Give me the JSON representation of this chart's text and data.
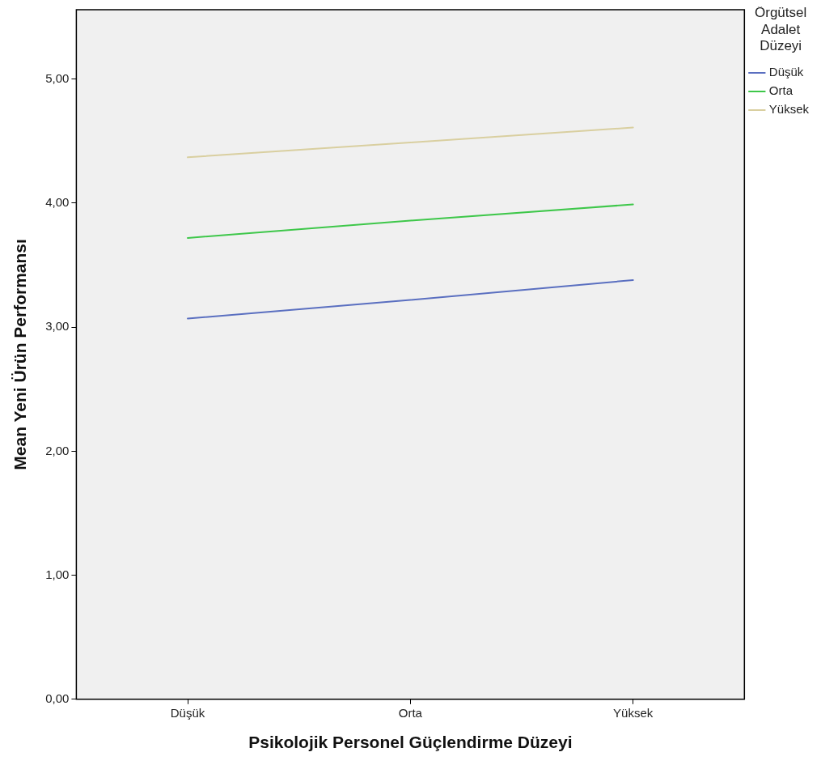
{
  "chart_data": {
    "type": "line",
    "xlabel": "Psikolojik Personel Güçlendirme Düzeyi",
    "ylabel": "Mean Yeni Ürün Performansı",
    "legend_title": "Örgütsel Adalet Düzeyi",
    "categories": [
      "Düşük",
      "Orta",
      "Yüksek"
    ],
    "series": [
      {
        "name": "Düşük",
        "color": "#5a6fc0",
        "values": [
          3.07,
          3.22,
          3.38
        ]
      },
      {
        "name": "Orta",
        "color": "#3ec74a",
        "values": [
          3.72,
          3.86,
          3.99
        ]
      },
      {
        "name": "Yüksek",
        "color": "#d9cfa0",
        "values": [
          4.37,
          4.49,
          4.61
        ]
      }
    ],
    "ylim": [
      0,
      5.56
    ],
    "yticks": [
      {
        "value": 0,
        "label": "0,00"
      },
      {
        "value": 1,
        "label": "1,00"
      },
      {
        "value": 2,
        "label": "2,00"
      },
      {
        "value": 3,
        "label": "3,00"
      },
      {
        "value": 4,
        "label": "4,00"
      },
      {
        "value": 5,
        "label": "5,00"
      }
    ],
    "grid": false,
    "legend": "right",
    "marker": "none",
    "line_style": "solid"
  }
}
